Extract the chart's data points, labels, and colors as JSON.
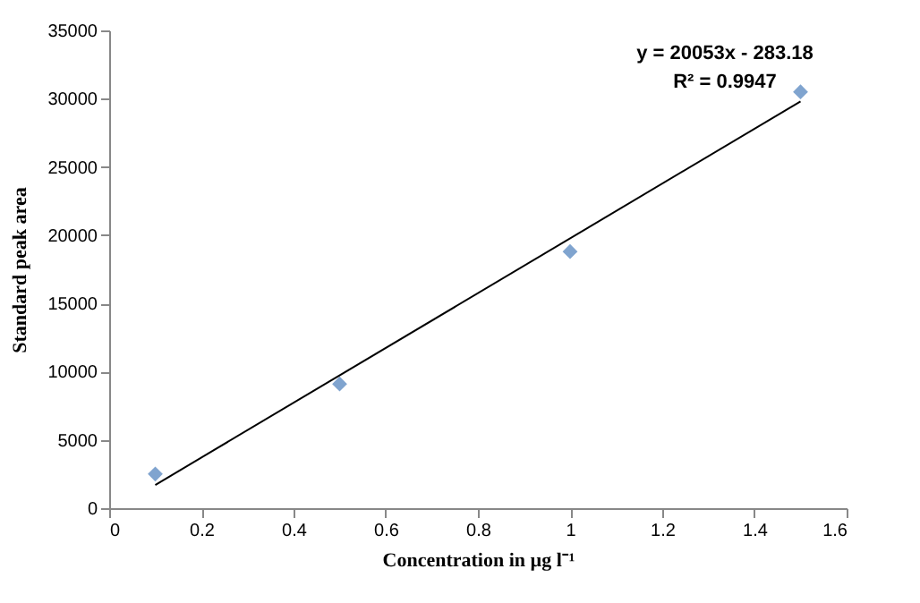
{
  "chart_data": {
    "type": "scatter",
    "xlabel": "Concentration in µg l⁻¹",
    "ylabel": "Standard peak area",
    "annotations": [
      "y = 20053x - 283.18",
      "R² = 0.9947"
    ],
    "x": [
      0.1,
      0.5,
      1.0,
      1.5
    ],
    "series": [
      {
        "color": "#4a7ebb",
        "values": [
          2500,
          9100,
          18800,
          30500
        ]
      },
      {
        "type": "line",
        "color": "#000000",
        "marker": "none",
        "x": [
          0.1,
          1.5
        ],
        "values": [
          1700,
          29800
        ]
      }
    ],
    "xlim": [
      0,
      1.6
    ],
    "xticks": [
      0,
      0.2,
      0.4,
      0.6,
      0.8,
      1,
      1.2,
      1.4,
      1.6
    ],
    "ylim": [
      0,
      35000
    ],
    "yticks": [
      0,
      5000,
      10000,
      15000,
      20000,
      25000,
      30000,
      35000
    ],
    "grid": false,
    "marker": "diamond",
    "line_style": "solid"
  }
}
